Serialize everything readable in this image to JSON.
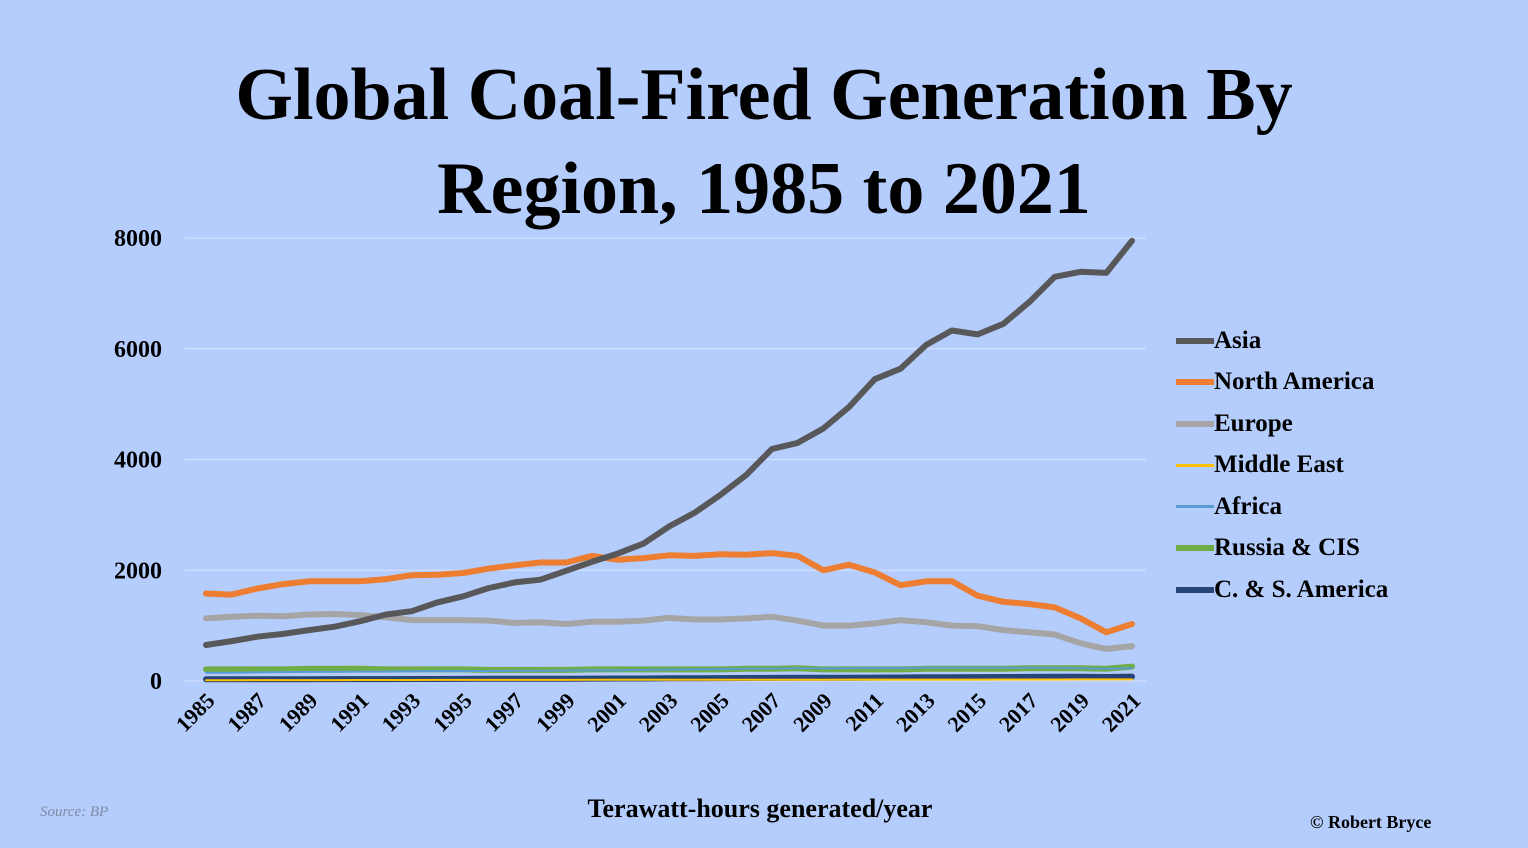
{
  "title_line1": "Global Coal-Fired Generation By",
  "title_line2": "Region, 1985 to 2021",
  "xlabel": "Terawatt-hours generated/year",
  "source": "Source: BP",
  "credit": "© Robert Bryce",
  "chart_data": {
    "type": "line",
    "title": "Global Coal-Fired Generation By Region, 1985 to 2021",
    "xlabel": "Terawatt-hours generated/year",
    "ylabel": "",
    "ylim": [
      0,
      8000
    ],
    "yticks": [
      0,
      2000,
      4000,
      6000,
      8000
    ],
    "xlim": [
      1985,
      2021
    ],
    "xticks": [
      "1985",
      "1987",
      "1989",
      "1991",
      "1993",
      "1995",
      "1997",
      "1999",
      "2001",
      "2003",
      "2005",
      "2007",
      "2009",
      "2011",
      "2013",
      "2015",
      "2017",
      "2019",
      "2021"
    ],
    "grid": true,
    "legend_position": "right",
    "x": [
      1985,
      1986,
      1987,
      1988,
      1989,
      1990,
      1991,
      1992,
      1993,
      1994,
      1995,
      1996,
      1997,
      1998,
      1999,
      2000,
      2001,
      2002,
      2003,
      2004,
      2005,
      2006,
      2007,
      2008,
      2009,
      2010,
      2011,
      2012,
      2013,
      2014,
      2015,
      2016,
      2017,
      2018,
      2019,
      2020,
      2021
    ],
    "series": [
      {
        "name": "Asia",
        "color": "#58585a",
        "values": [
          650,
          720,
          800,
          850,
          920,
          980,
          1080,
          1200,
          1260,
          1420,
          1530,
          1680,
          1780,
          1830,
          1990,
          2150,
          2300,
          2480,
          2790,
          3040,
          3360,
          3720,
          4190,
          4300,
          4560,
          4950,
          5450,
          5640,
          6070,
          6330,
          6260,
          6450,
          6840,
          7300,
          7390,
          7370,
          7950
        ]
      },
      {
        "name": "North America",
        "color": "#ed7d31",
        "values": [
          1580,
          1560,
          1670,
          1750,
          1800,
          1800,
          1800,
          1840,
          1910,
          1920,
          1950,
          2030,
          2090,
          2140,
          2140,
          2260,
          2190,
          2220,
          2270,
          2260,
          2290,
          2280,
          2310,
          2260,
          2000,
          2100,
          1960,
          1730,
          1800,
          1800,
          1540,
          1430,
          1390,
          1330,
          1130,
          880,
          1030
        ]
      },
      {
        "name": "Europe",
        "color": "#a5a5a5",
        "values": [
          1130,
          1160,
          1180,
          1170,
          1200,
          1210,
          1190,
          1150,
          1100,
          1100,
          1100,
          1090,
          1050,
          1060,
          1030,
          1070,
          1070,
          1090,
          1140,
          1110,
          1110,
          1130,
          1160,
          1090,
          1000,
          1000,
          1040,
          1100,
          1060,
          1000,
          990,
          920,
          880,
          840,
          680,
          580,
          630
        ]
      },
      {
        "name": "Middle East",
        "color": "#ffc000",
        "values": [
          15,
          15,
          16,
          16,
          17,
          17,
          18,
          18,
          18,
          19,
          19,
          19,
          20,
          20,
          20,
          21,
          21,
          21,
          22,
          22,
          23,
          23,
          24,
          24,
          24,
          25,
          25,
          25,
          26,
          26,
          26,
          27,
          27,
          27,
          28,
          28,
          28
        ]
      },
      {
        "name": "Africa",
        "color": "#5b9bd5",
        "values": [
          150,
          150,
          155,
          160,
          165,
          165,
          170,
          170,
          175,
          180,
          180,
          180,
          185,
          185,
          190,
          195,
          195,
          200,
          205,
          210,
          215,
          220,
          225,
          230,
          225,
          230,
          235,
          235,
          240,
          240,
          240,
          240,
          240,
          240,
          230,
          220,
          230
        ]
      },
      {
        "name": "Russia & CIS",
        "color": "#70ad47",
        "values": [
          210,
          210,
          210,
          210,
          220,
          220,
          220,
          210,
          210,
          210,
          210,
          200,
          200,
          200,
          200,
          210,
          210,
          210,
          210,
          210,
          210,
          220,
          220,
          230,
          210,
          210,
          210,
          210,
          220,
          220,
          220,
          220,
          230,
          230,
          230,
          220,
          260
        ]
      },
      {
        "name": "C. & S. America",
        "color": "#264478",
        "values": [
          30,
          30,
          31,
          32,
          33,
          34,
          35,
          35,
          36,
          37,
          38,
          39,
          40,
          41,
          42,
          44,
          45,
          46,
          48,
          50,
          52,
          54,
          56,
          58,
          58,
          60,
          62,
          64,
          66,
          68,
          70,
          72,
          74,
          75,
          76,
          72,
          80
        ]
      }
    ]
  }
}
